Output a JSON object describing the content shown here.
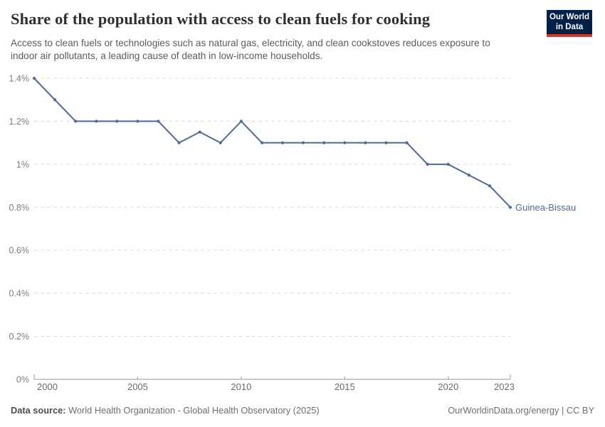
{
  "header": {
    "title": "Share of the population with access to clean fuels for cooking",
    "subtitle": "Access to clean fuels or technologies such as natural gas, electricity, and clean cookstoves reduces exposure to indoor air pollutants, a leading cause of death in low-income households.",
    "logo": {
      "line1": "Our World",
      "line2": "in Data",
      "bg_color": "#002147",
      "accent_color": "#d7382e"
    }
  },
  "chart_data": {
    "type": "line",
    "title": "Share of the population with access to clean fuels for cooking",
    "x": [
      2000,
      2001,
      2002,
      2003,
      2004,
      2005,
      2006,
      2007,
      2008,
      2009,
      2010,
      2011,
      2012,
      2013,
      2014,
      2015,
      2016,
      2017,
      2018,
      2019,
      2020,
      2021,
      2022,
      2023
    ],
    "series": [
      {
        "name": "Guinea-Bissau",
        "color": "#4c6a9c",
        "values": [
          1.4,
          1.3,
          1.2,
          1.2,
          1.2,
          1.2,
          1.2,
          1.1,
          1.15,
          1.1,
          1.2,
          1.1,
          1.1,
          1.1,
          1.1,
          1.1,
          1.1,
          1.1,
          1.1,
          1.0,
          1.0,
          0.95,
          0.9,
          0.8
        ]
      }
    ],
    "xlim": [
      2000,
      2023
    ],
    "ylim": [
      0,
      1.4
    ],
    "x_ticks": [
      2000,
      2005,
      2010,
      2015,
      2020,
      2023
    ],
    "y_ticks": [
      0,
      0.2,
      0.4,
      0.6,
      0.8,
      1,
      1.2,
      1.4
    ],
    "y_tick_labels": [
      "0%",
      "0.2%",
      "0.4%",
      "0.6%",
      "0.8%",
      "1%",
      "1.2%",
      "1.4%"
    ],
    "xlabel": "",
    "ylabel": "",
    "grid": "horizontal-dashed",
    "legend_position": "end-of-line-label",
    "colors": {
      "grid": "#dcdcdc",
      "axis": "#9a9a9a",
      "y_tick_text": "#7e7e7e",
      "x_tick_text": "#6b6b6b"
    }
  },
  "footer": {
    "datasource_label": "Data source:",
    "datasource_value": " World Health Organization - Global Health Observatory (2025)",
    "credit": "OurWorldinData.org/energy | CC BY"
  }
}
